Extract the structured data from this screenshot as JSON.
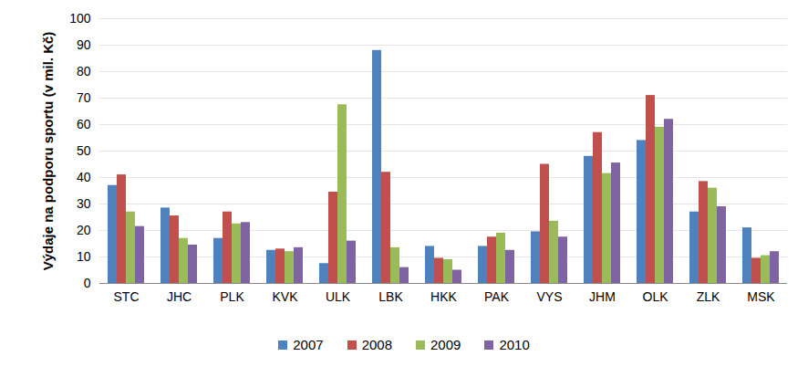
{
  "chart_data": {
    "type": "bar",
    "y_label": "Výdaje na podporu sportu (v mil. Kč)",
    "categories": [
      "STC",
      "JHC",
      "PLK",
      "KVK",
      "ULK",
      "LBK",
      "HKK",
      "PAK",
      "VYS",
      "JHM",
      "OLK",
      "ZLK",
      "MSK"
    ],
    "series": [
      {
        "name": "2007",
        "color": "#4f81bd",
        "values": [
          37,
          28.5,
          17,
          12.5,
          7.5,
          88,
          14,
          14,
          19.5,
          48,
          54,
          27,
          21
        ]
      },
      {
        "name": "2008",
        "color": "#c0504d",
        "values": [
          41,
          25.5,
          27,
          13,
          34.5,
          42,
          9.5,
          17.5,
          45,
          57,
          71,
          38.5,
          9.5
        ]
      },
      {
        "name": "2009",
        "color": "#9bbb59",
        "values": [
          27,
          17,
          22.5,
          12,
          67.5,
          13.5,
          9,
          19,
          23.5,
          41.5,
          59,
          36,
          10.5
        ]
      },
      {
        "name": "2010",
        "color": "#8064a2",
        "values": [
          21.5,
          14.5,
          23,
          13.5,
          16,
          6,
          5,
          12.5,
          17.5,
          45.5,
          62,
          29,
          12
        ]
      }
    ],
    "ylim": [
      0,
      100
    ],
    "yticks": [
      0,
      10,
      20,
      30,
      40,
      50,
      60,
      70,
      80,
      90,
      100
    ],
    "grid": true,
    "legend": "bottom"
  }
}
